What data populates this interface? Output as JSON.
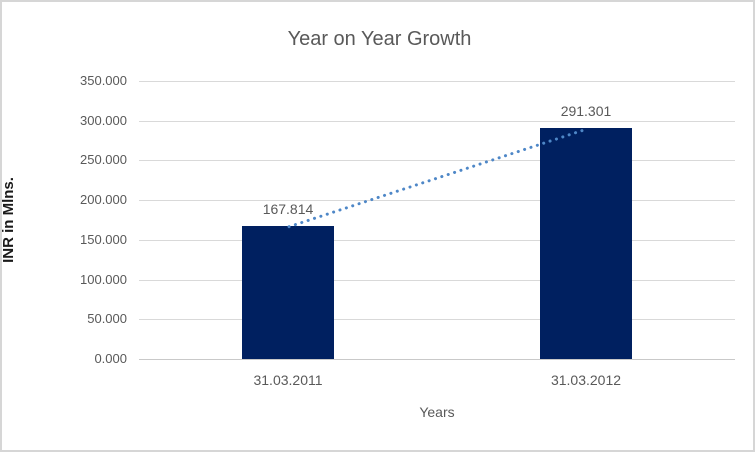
{
  "chart_data": {
    "type": "bar",
    "title": "Year on Year Growth",
    "categories": [
      "31.03.2011",
      "31.03.2012"
    ],
    "values": [
      167.814,
      291.301
    ],
    "data_labels": [
      "167.814",
      "291.301"
    ],
    "xlabel": "Years",
    "ylabel": "INR in Mlns.",
    "ylim": [
      0,
      350
    ],
    "ytick_step": 50,
    "ytick_labels": [
      "0.000",
      "50.000",
      "100.000",
      "150.000",
      "200.000",
      "250.000",
      "300.000",
      "350.000"
    ],
    "grid": true,
    "legend": false,
    "colors": {
      "bar": "#002060",
      "trendline": "#4E87C7",
      "gridline": "#D9D9D9",
      "axis_line": "#C9C9C9",
      "text": "#595959",
      "frame_border": "#D6D6D6",
      "background": "#FFFFFF"
    },
    "trendline": {
      "type": "linear",
      "style": "dotted",
      "connects": "bar-tops"
    }
  }
}
